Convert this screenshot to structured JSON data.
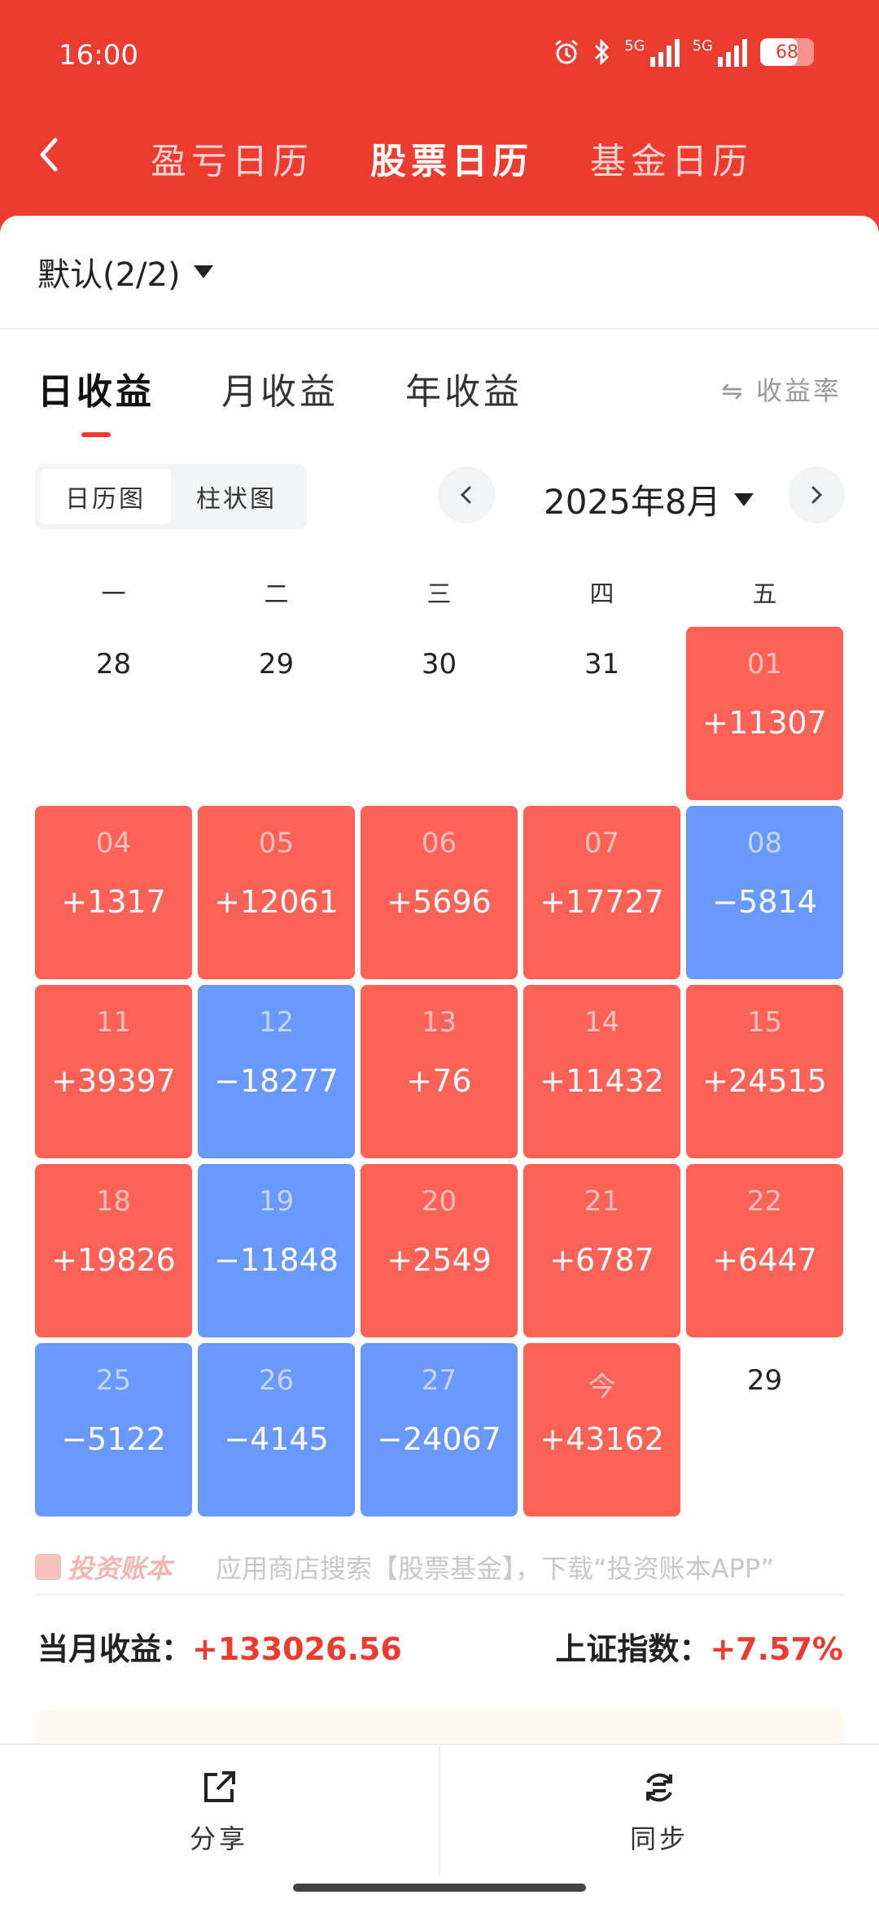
{
  "status_bar": {
    "time": "16:00",
    "battery": "68",
    "signal_label": "5G"
  },
  "nav": {
    "tabs": [
      {
        "label": "盈亏日历",
        "active": false
      },
      {
        "label": "股票日历",
        "active": true
      },
      {
        "label": "基金日历",
        "active": false
      }
    ]
  },
  "account": {
    "label": "默认(2/2)"
  },
  "period_tabs": [
    {
      "label": "日收益",
      "active": true
    },
    {
      "label": "月收益",
      "active": false
    },
    {
      "label": "年收益",
      "active": false
    }
  ],
  "rate_toggle": "⇋ 收益率",
  "view_toggle": {
    "calendar": "日历图",
    "bar": "柱状图"
  },
  "month": {
    "label": "2025年8月"
  },
  "weekdays": [
    "一",
    "二",
    "三",
    "四",
    "五"
  ],
  "calendar": [
    {
      "day": "28",
      "value": "",
      "kind": "empty"
    },
    {
      "day": "29",
      "value": "",
      "kind": "empty"
    },
    {
      "day": "30",
      "value": "",
      "kind": "empty"
    },
    {
      "day": "31",
      "value": "",
      "kind": "empty"
    },
    {
      "day": "01",
      "value": "+11307",
      "kind": "gain"
    },
    {
      "day": "04",
      "value": "+1317",
      "kind": "gain"
    },
    {
      "day": "05",
      "value": "+12061",
      "kind": "gain"
    },
    {
      "day": "06",
      "value": "+5696",
      "kind": "gain"
    },
    {
      "day": "07",
      "value": "+17727",
      "kind": "gain"
    },
    {
      "day": "08",
      "value": "−5814",
      "kind": "loss"
    },
    {
      "day": "11",
      "value": "+39397",
      "kind": "gain"
    },
    {
      "day": "12",
      "value": "−18277",
      "kind": "loss"
    },
    {
      "day": "13",
      "value": "+76",
      "kind": "gain"
    },
    {
      "day": "14",
      "value": "+11432",
      "kind": "gain"
    },
    {
      "day": "15",
      "value": "+24515",
      "kind": "gain"
    },
    {
      "day": "18",
      "value": "+19826",
      "kind": "gain"
    },
    {
      "day": "19",
      "value": "−11848",
      "kind": "loss"
    },
    {
      "day": "20",
      "value": "+2549",
      "kind": "gain"
    },
    {
      "day": "21",
      "value": "+6787",
      "kind": "gain"
    },
    {
      "day": "22",
      "value": "+6447",
      "kind": "gain"
    },
    {
      "day": "25",
      "value": "−5122",
      "kind": "loss"
    },
    {
      "day": "26",
      "value": "−4145",
      "kind": "loss"
    },
    {
      "day": "27",
      "value": "−24067",
      "kind": "loss"
    },
    {
      "day": "今",
      "value": "+43162",
      "kind": "gain"
    },
    {
      "day": "29",
      "value": "",
      "kind": "empty"
    }
  ],
  "promo": {
    "logo": "投资账本",
    "text": "应用商店搜索【股票基金】，下载“投资账本APP”"
  },
  "summary": {
    "month_label": "当月收益：",
    "month_value": "+133026.56",
    "index_label": "上证指数：",
    "index_value": "+7.57%"
  },
  "bottom_bar": {
    "share": "分享",
    "sync": "同步"
  },
  "colors": {
    "brand": "#ee3b2f",
    "gain": "#fe6257",
    "loss": "#6998fe"
  }
}
